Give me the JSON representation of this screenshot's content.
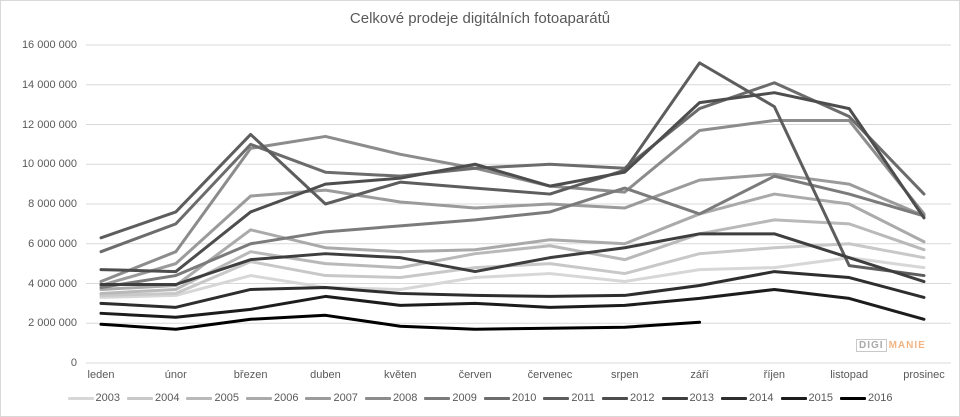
{
  "chart": {
    "title": "Celkové prodeje digitálních fotoaparátů"
  },
  "watermark": {
    "digi": "DIGI",
    "manie": "MANIE",
    "digi_color": "#9b9b9b",
    "manie_color": "#f0a86e"
  },
  "axes": {
    "y_ticks": [
      "0",
      "2 000 000",
      "4 000 000",
      "6 000 000",
      "8 000 000",
      "10 000 000",
      "12 000 000",
      "14 000 000",
      "16 000 000"
    ],
    "x_ticks": [
      "leden",
      "únor",
      "březen",
      "duben",
      "květen",
      "červen",
      "červenec",
      "srpen",
      "září",
      "říjen",
      "listopad",
      "prosinec"
    ]
  },
  "style": {
    "grid_color": "#d9d9d9",
    "text_color": "#595959",
    "line_width": 3
  },
  "chart_data": {
    "type": "line",
    "title": "Celkové prodeje digitálních fotoaparátů",
    "categories": [
      "leden",
      "únor",
      "březen",
      "duben",
      "květen",
      "červen",
      "červenec",
      "srpen",
      "září",
      "říjen",
      "listopad",
      "prosinec"
    ],
    "xlabel": "",
    "ylabel": "",
    "ylim": [
      0,
      16000000
    ],
    "y_step": 2000000,
    "grid": true,
    "legend_position": "bottom",
    "series": [
      {
        "name": "2003",
        "color": "#d7d7d7",
        "values": [
          3300000,
          3400000,
          4400000,
          3800000,
          3700000,
          4300000,
          4500000,
          4100000,
          4700000,
          4800000,
          5300000,
          4800000
        ]
      },
      {
        "name": "2004",
        "color": "#c8c8c8",
        "values": [
          3400000,
          3500000,
          5100000,
          4400000,
          4300000,
          4800000,
          5000000,
          4500000,
          5500000,
          5800000,
          6000000,
          5300000
        ]
      },
      {
        "name": "2005",
        "color": "#b9b9b9",
        "values": [
          3500000,
          3700000,
          5600000,
          5000000,
          4800000,
          5500000,
          5900000,
          5200000,
          6500000,
          7200000,
          7000000,
          5700000
        ]
      },
      {
        "name": "2006",
        "color": "#aaaaaa",
        "values": [
          3700000,
          3900000,
          6700000,
          5800000,
          5600000,
          5700000,
          6200000,
          6000000,
          7500000,
          8500000,
          8000000,
          6100000
        ]
      },
      {
        "name": "2007",
        "color": "#9b9b9b",
        "values": [
          3900000,
          5000000,
          8400000,
          8700000,
          8100000,
          7800000,
          8000000,
          7800000,
          9200000,
          9500000,
          9000000,
          7400000
        ]
      },
      {
        "name": "2008",
        "color": "#8c8c8c",
        "values": [
          4100000,
          5600000,
          10800000,
          11400000,
          10500000,
          9800000,
          8900000,
          8600000,
          11700000,
          12200000,
          12200000,
          7500000
        ]
      },
      {
        "name": "2009",
        "color": "#7b7b7b",
        "values": [
          3800000,
          4400000,
          6000000,
          6600000,
          6900000,
          7200000,
          7600000,
          8800000,
          7500000,
          9400000,
          8500000,
          7400000
        ]
      },
      {
        "name": "2010",
        "color": "#6c6c6c",
        "values": [
          5600000,
          7000000,
          11000000,
          9600000,
          9400000,
          9800000,
          10000000,
          9800000,
          12800000,
          14100000,
          12400000,
          8500000
        ]
      },
      {
        "name": "2011",
        "color": "#5d5d5d",
        "values": [
          6300000,
          7600000,
          11500000,
          8000000,
          9100000,
          8800000,
          8500000,
          9700000,
          15100000,
          12900000,
          4900000,
          4400000
        ]
      },
      {
        "name": "2012",
        "color": "#4d4d4d",
        "values": [
          4700000,
          4600000,
          7600000,
          9000000,
          9300000,
          10000000,
          8900000,
          9600000,
          13100000,
          13600000,
          12800000,
          7300000
        ]
      },
      {
        "name": "2013",
        "color": "#3e3e3e",
        "values": [
          3950000,
          3950000,
          5200000,
          5500000,
          5300000,
          4600000,
          5300000,
          5800000,
          6500000,
          6500000,
          5300000,
          4100000
        ]
      },
      {
        "name": "2014",
        "color": "#2e2e2e",
        "values": [
          3000000,
          2800000,
          3700000,
          3800000,
          3500000,
          3400000,
          3350000,
          3400000,
          3900000,
          4600000,
          4300000,
          3300000
        ]
      },
      {
        "name": "2015",
        "color": "#1c1c1c",
        "values": [
          2500000,
          2300000,
          2700000,
          3350000,
          2900000,
          3000000,
          2800000,
          2900000,
          3250000,
          3700000,
          3250000,
          2200000
        ]
      },
      {
        "name": "2016",
        "color": "#000000",
        "values": [
          1950000,
          1700000,
          2200000,
          2400000,
          1850000,
          1700000,
          1750000,
          1800000,
          2050000
        ]
      }
    ]
  }
}
